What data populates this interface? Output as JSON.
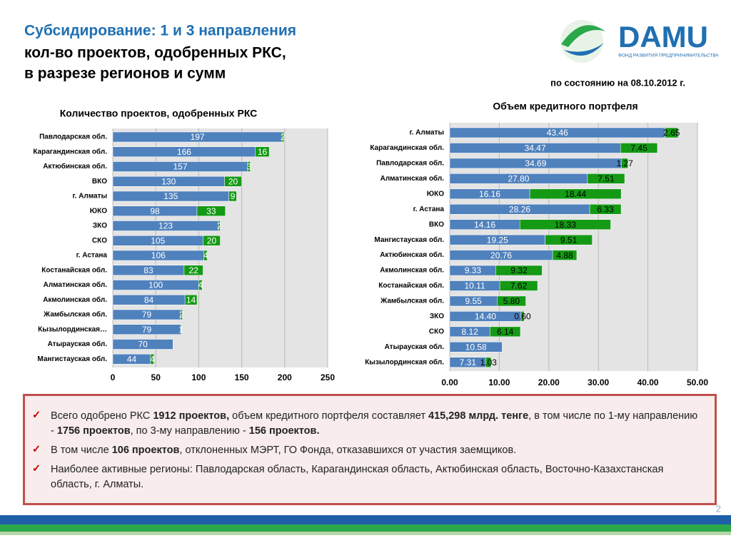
{
  "header": {
    "title": "Субсидирование: 1 и 3 направления",
    "subtitle_lines": [
      "кол-во проектов, одобренных РКС,",
      "в разрезе регионов и сумм"
    ],
    "date": "по состоянию на 08.10.2012 г."
  },
  "logo": {
    "text": "DAMU",
    "tagline": "ФОНД РАЗВИТИЯ ПРЕДПРИНИМАТЕЛЬСТВА"
  },
  "chart_data": [
    {
      "type": "bar",
      "orientation": "horizontal",
      "stacked": true,
      "title": "Количество проектов, одобренных РКС",
      "categories": [
        "Павлодарская обл.",
        "Карагандинская обл.",
        "Актюбинская обл.",
        "ВКО",
        "г. Алматы",
        "ЮКО",
        "ЗКО",
        "СКО",
        "г. Астана",
        "Костанайская обл.",
        "Алматинская обл.",
        "Акмолинская обл.",
        "Жамбылская обл.",
        "Кызылординская…",
        "Атырауская обл.",
        "Мангистауская обл."
      ],
      "series": [
        {
          "color": "#4f81bd",
          "values": [
            197,
            166,
            157,
            130,
            135,
            98,
            123,
            105,
            106,
            83,
            100,
            84,
            79,
            79,
            70,
            44
          ]
        },
        {
          "color": "#149a14",
          "values": [
            2,
            16,
            3,
            20,
            9,
            33,
            2,
            20,
            4,
            22,
            4,
            14,
            2,
            1,
            null,
            4
          ]
        }
      ],
      "xlim": [
        0,
        250
      ],
      "xticks": [
        0,
        50,
        100,
        150,
        200,
        250
      ],
      "grid": true
    },
    {
      "type": "bar",
      "orientation": "horizontal",
      "stacked": true,
      "title": "Объем кредитного портфеля",
      "categories": [
        "г. Алматы",
        "Карагандинская обл.",
        "Павлодарская обл.",
        "Алматинская обл.",
        "ЮКО",
        "г. Астана",
        "ВКО",
        "Мангистауская обл.",
        "Актюбинская обл.",
        "Акмолинская обл.",
        "Костанайская обл.",
        "Жамбылская обл.",
        "ЗКО",
        "СКО",
        "Атырауская обл.",
        "Кызылординская обл."
      ],
      "series": [
        {
          "color": "#4f81bd",
          "values": [
            43.46,
            34.47,
            34.69,
            27.8,
            16.16,
            28.26,
            14.16,
            19.25,
            20.76,
            9.33,
            10.11,
            9.55,
            14.4,
            8.12,
            10.58,
            7.31
          ],
          "value_labels": [
            "43.46",
            "34.47",
            "34.69",
            "27.80",
            "16.16",
            "28.26",
            "14.16",
            "19.25",
            "20.76",
            "9.33",
            "10.11",
            "9.55",
            "14.40",
            "8.12",
            "10.58",
            "7.31"
          ]
        },
        {
          "color": "#149a14",
          "values": [
            2.65,
            7.45,
            1.27,
            7.51,
            18.44,
            6.33,
            18.33,
            9.51,
            4.88,
            9.32,
            7.62,
            5.8,
            0.6,
            6.14,
            null,
            1.03
          ],
          "value_labels": [
            "2.65",
            "7.45",
            "1.27",
            "7.51",
            "18.44",
            "6.33",
            "18.33",
            "9.51",
            "4.88",
            "9.32",
            "7.62",
            "5.80",
            "0.60",
            "6.14",
            null,
            "1.03"
          ]
        }
      ],
      "xlim": [
        0,
        50
      ],
      "xticks": [
        {
          "value": 0,
          "label": "0.00"
        },
        {
          "value": 10,
          "label": "10.00"
        },
        {
          "value": 20,
          "label": "20.00"
        },
        {
          "value": 30,
          "label": "30.00"
        },
        {
          "value": 40,
          "label": "40.00"
        },
        {
          "value": 50,
          "label": "50.00"
        }
      ],
      "grid": true
    }
  ],
  "notes": [
    [
      {
        "text": "Всего одобрено РКС ",
        "bold": false
      },
      {
        "text": "1912 проектов,",
        "bold": true
      },
      {
        "text": " объем кредитного портфеля составляет ",
        "bold": false
      },
      {
        "text": "415,298 млрд. тенге",
        "bold": true
      },
      {
        "text": ", в том числе по 1-му направлению -  ",
        "bold": false
      },
      {
        "text": "1756 проектов",
        "bold": true
      },
      {
        "text": ", по 3-му направлению - ",
        "bold": false
      },
      {
        "text": "156 проектов.",
        "bold": true
      }
    ],
    [
      {
        "text": "В том числе ",
        "bold": false
      },
      {
        "text": "106 проектов",
        "bold": true
      },
      {
        "text": ", отклоненных МЭРТ, ГО Фонда, отказавшихся от участия заемщиков.",
        "bold": false
      }
    ],
    [
      {
        "text": "Наиболее активные регионы: Павлодарская область, Карагандинская область, Актюбинская область, Восточно-Казахстанская область, г. Алматы.",
        "bold": false
      }
    ]
  ],
  "page_number": "2"
}
